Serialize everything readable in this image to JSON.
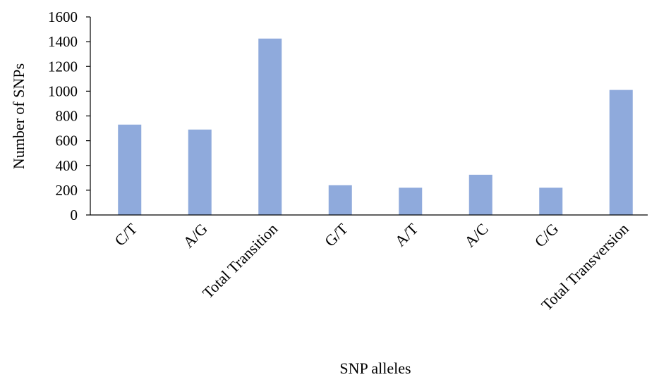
{
  "chart_data": {
    "type": "bar",
    "title": "",
    "xlabel": "SNP alleles",
    "ylabel": "Number of SNPs",
    "categories": [
      "C/T",
      "A/G",
      "Total Transition",
      "G/T",
      "A/T",
      "A/C",
      "C/G",
      "Total Transversion"
    ],
    "values": [
      730,
      690,
      1425,
      240,
      220,
      325,
      220,
      1010
    ],
    "ylim": [
      0,
      1600
    ],
    "yticks": [
      "0",
      "200",
      "400",
      "600",
      "800",
      "1000",
      "1200",
      "1400",
      "1600"
    ],
    "grid": false,
    "legend": "none",
    "bar_color": "#8faadc"
  }
}
